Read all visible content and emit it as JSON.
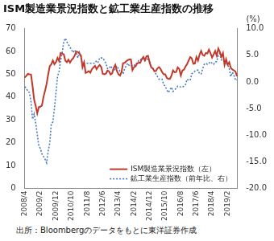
{
  "chart_data": {
    "type": "line",
    "title": "ISM製造業景況指数と鉱工業生産指数の推移",
    "source": "出所：Bloombergのデータをもとに東洋証券作成",
    "y2label": "(%)",
    "categories": [
      "2008/4",
      null,
      null,
      null,
      null,
      null,
      null,
      null,
      null,
      null,
      "2009/2",
      null,
      null,
      null,
      null,
      null,
      null,
      null,
      null,
      null,
      "2009/12",
      null,
      null,
      null,
      null,
      null,
      null,
      null,
      null,
      null,
      "2010/10",
      null,
      null,
      null,
      null,
      null,
      null,
      null,
      null,
      null,
      "2011/8",
      null,
      null,
      null,
      null,
      null,
      null,
      null,
      null,
      null,
      "2012/6",
      null,
      null,
      null,
      null,
      null,
      null,
      null,
      null,
      null,
      "2013/4",
      null,
      null,
      null,
      null,
      null,
      null,
      null,
      null,
      null,
      "2014/2",
      null,
      null,
      null,
      null,
      null,
      null,
      null,
      null,
      null,
      "2014/12",
      null,
      null,
      null,
      null,
      null,
      null,
      null,
      null,
      null,
      "2015/10",
      null,
      null,
      null,
      null,
      null,
      null,
      null,
      null,
      null,
      "2016/8",
      null,
      null,
      null,
      null,
      null,
      null,
      null,
      null,
      null,
      "2017/6",
      null,
      null,
      null,
      null,
      null,
      null,
      null,
      null,
      null,
      "2018/4",
      null,
      null,
      null,
      null,
      null,
      null,
      null,
      null,
      null,
      "2019/2",
      null,
      null,
      null,
      null,
      null,
      null
    ],
    "series": [
      {
        "name": "ISM製造業景況指数（左）",
        "color": "#c0392b",
        "line_style": "solid",
        "axis": "y",
        "values": [
          48.6,
          49.3,
          50.2,
          50.0,
          49.9,
          44.8,
          38.9,
          36.2,
          32.9,
          35.6,
          35.8,
          36.3,
          40.1,
          42.8,
          45.8,
          49.9,
          53.5,
          54.4,
          56.0,
          54.4,
          55.3,
          57.2,
          55.8,
          59.3,
          59.0,
          58.8,
          56.0,
          55.3,
          56.4,
          55.1,
          56.3,
          57.0,
          58.2,
          59.9,
          59.8,
          59.1,
          58.2,
          53.1,
          55.2,
          50.6,
          50.9,
          51.4,
          50.7,
          52.2,
          53.0,
          53.7,
          52.2,
          53.3,
          54.1,
          53.2,
          50.2,
          50.0,
          50.3,
          51.6,
          51.3,
          49.9,
          50.4,
          52.8,
          54.1,
          51.5,
          50.0,
          49.4,
          51.0,
          54.9,
          55.0,
          55.7,
          56.2,
          56.5,
          56.5,
          51.8,
          53.1,
          53.5,
          54.7,
          55.1,
          55.0,
          56.7,
          57.6,
          56.1,
          57.9,
          58.1,
          55.1,
          53.0,
          52.6,
          51.4,
          51.4,
          52.6,
          53.1,
          52.3,
          51.0,
          50.0,
          50.0,
          48.4,
          48.0,
          48.0,
          49.4,
          51.7,
          50.9,
          51.0,
          53.0,
          52.3,
          49.5,
          51.7,
          52.0,
          53.4,
          54.5,
          56.0,
          57.5,
          57.0,
          54.6,
          54.7,
          57.6,
          56.0,
          58.6,
          60.2,
          58.5,
          58.1,
          59.3,
          59.1,
          60.8,
          59.3,
          57.3,
          58.7,
          60.2,
          58.1,
          61.3,
          59.8,
          57.7,
          59.3,
          54.1,
          56.6,
          54.2,
          55.3,
          52.8,
          52.1,
          51.7,
          51.2,
          49.1
        ]
      },
      {
        "name": "鉱工業生産指数（前年比、右）",
        "color": "#4a78c2",
        "line_style": "dotted",
        "axis": "y2",
        "values": [
          -0.9,
          -1.2,
          -1.8,
          -2.0,
          -3.7,
          -7.0,
          -6.0,
          -7.7,
          -9.8,
          -12.0,
          -12.5,
          -13.5,
          -14.0,
          -14.5,
          -15.2,
          -13.0,
          -11.5,
          -8.0,
          -7.5,
          -5.0,
          -2.0,
          1.0,
          2.0,
          4.0,
          5.5,
          7.5,
          8.2,
          7.5,
          7.0,
          6.5,
          6.0,
          5.5,
          6.0,
          5.5,
          4.5,
          5.5,
          4.5,
          3.5,
          3.5,
          3.5,
          3.5,
          3.5,
          3.5,
          3.5,
          3.5,
          3.5,
          4.0,
          3.7,
          4.5,
          4.5,
          4.5,
          4.0,
          3.5,
          2.5,
          2.5,
          3.0,
          2.5,
          2.0,
          2.5,
          3.0,
          2.5,
          2.0,
          2.0,
          1.5,
          2.5,
          3.0,
          3.5,
          3.0,
          3.0,
          3.0,
          3.0,
          3.5,
          3.5,
          4.0,
          4.0,
          4.5,
          4.0,
          4.0,
          4.0,
          4.5,
          4.0,
          3.0,
          2.5,
          2.0,
          1.5,
          1.0,
          0.5,
          0.5,
          0.5,
          -0.5,
          -0.8,
          -1.5,
          -2.0,
          -1.5,
          -1.0,
          -1.8,
          -1.5,
          -1.2,
          -0.8,
          -0.8,
          -1.0,
          -1.0,
          -0.8,
          -0.5,
          0.5,
          0.3,
          0.3,
          1.5,
          1.8,
          2.0,
          2.2,
          2.2,
          1.5,
          1.5,
          2.5,
          3.3,
          3.5,
          3.3,
          3.5,
          3.8,
          3.5,
          3.3,
          3.8,
          3.8,
          5.0,
          5.3,
          4.1,
          4.0,
          3.8,
          3.5,
          3.3,
          2.5,
          1.0,
          1.8,
          1.3,
          0.3,
          0.4
        ]
      }
    ],
    "ylim": [
      0,
      70
    ],
    "yticks": [
      0,
      10,
      20,
      30,
      40,
      50,
      60,
      70
    ],
    "y2lim": [
      -20,
      10
    ],
    "y2ticks": [
      {
        "value": -20,
        "label": "-20.0"
      },
      {
        "value": -15,
        "label": "-15.0"
      },
      {
        "value": -10,
        "label": "-10.0"
      },
      {
        "value": -5,
        "label": "-5.0"
      },
      {
        "value": 0,
        "label": "0.0"
      },
      {
        "value": 5,
        "label": "5.0"
      },
      {
        "value": 10,
        "label": "10.0"
      }
    ],
    "grid": false,
    "legend": "lower right"
  }
}
